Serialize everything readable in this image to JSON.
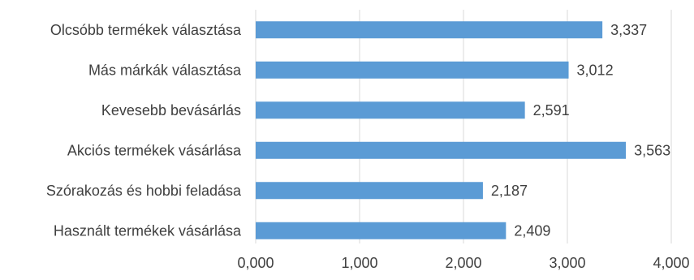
{
  "chart_data": {
    "type": "bar",
    "orientation": "horizontal",
    "categories": [
      "Olcsóbb termékek választása",
      "Más márkák választása",
      "Kevesebb bevásárlás",
      "Akciós termékek vásárlása",
      "Szórakozás és hobbi feladása",
      "Használt termékek vásárlása"
    ],
    "values": [
      3.337,
      3.012,
      2.591,
      3.563,
      2.187,
      2.409
    ],
    "value_labels": [
      "3,337",
      "3,012",
      "2,591",
      "3,563",
      "2,187",
      "2,409"
    ],
    "xlim": [
      0,
      4
    ],
    "ticks": [
      0,
      1,
      2,
      3,
      4
    ],
    "tick_labels": [
      "0,000",
      "1,000",
      "2,000",
      "3,000",
      "4,000"
    ],
    "grid": "vertical",
    "legend": "none",
    "title": "",
    "xlabel": "",
    "ylabel": "",
    "colors": {
      "bar": "#5B9BD5",
      "grid": "#D9D9D9",
      "text": "#404040"
    }
  }
}
